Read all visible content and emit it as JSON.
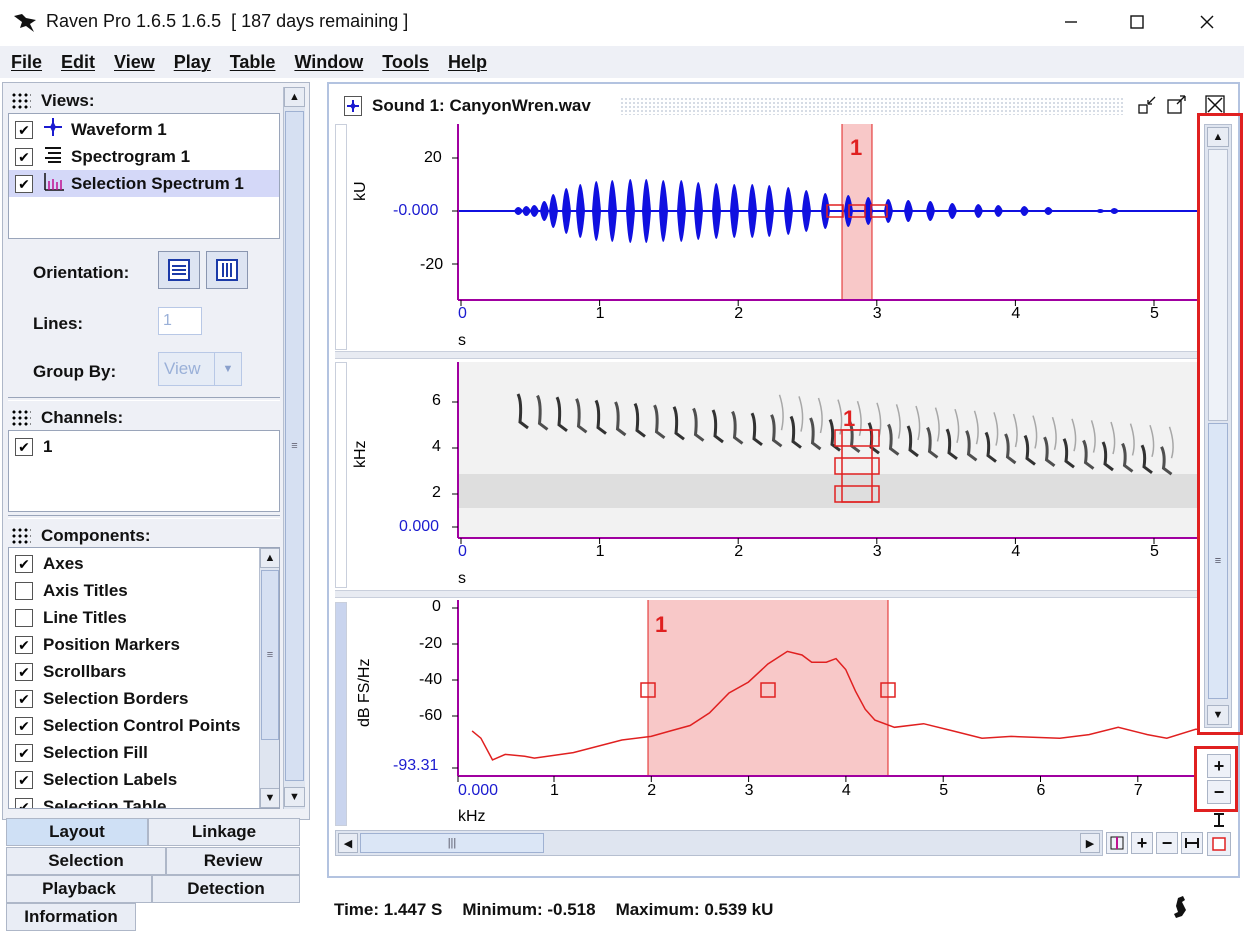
{
  "app": {
    "title": "Raven Pro 1.6.5 1.6.5  [ 187 days remaining ]"
  },
  "menu": [
    "File",
    "Edit",
    "View",
    "Play",
    "Table",
    "Window",
    "Tools",
    "Help"
  ],
  "views": {
    "heading": "Views:",
    "items": [
      {
        "label": "Waveform 1",
        "checked": true,
        "icon": "waveform-icon"
      },
      {
        "label": "Spectrogram 1",
        "checked": true,
        "icon": "spectrogram-icon"
      },
      {
        "label": "Selection Spectrum 1",
        "checked": true,
        "icon": "selection-spectrum-icon",
        "selected": true
      }
    ]
  },
  "layout_controls": {
    "orientation_label": "Orientation:",
    "lines_label": "Lines:",
    "lines_value": "1",
    "group_by_label": "Group By:",
    "group_by_value": "View"
  },
  "channels": {
    "heading": "Channels:",
    "items": [
      {
        "label": "1",
        "checked": true
      }
    ]
  },
  "components": {
    "heading": "Components:",
    "items": [
      {
        "label": "Axes",
        "checked": true
      },
      {
        "label": "Axis Titles",
        "checked": false
      },
      {
        "label": "Line Titles",
        "checked": false
      },
      {
        "label": "Position Markers",
        "checked": true
      },
      {
        "label": "Scrollbars",
        "checked": true
      },
      {
        "label": "Selection Borders",
        "checked": true
      },
      {
        "label": "Selection Control Points",
        "checked": true
      },
      {
        "label": "Selection Fill",
        "checked": true
      },
      {
        "label": "Selection Labels",
        "checked": true
      },
      {
        "label": "Selection Table",
        "checked": true
      }
    ]
  },
  "tabs": {
    "layout": "Layout",
    "linkage": "Linkage",
    "selection": "Selection",
    "review": "Review",
    "playback": "Playback",
    "detection": "Detection",
    "information": "Information"
  },
  "document": {
    "title": "Sound 1: CanyonWren.wav"
  },
  "waveform": {
    "ylabel": "kU",
    "yticks": [
      "20",
      "-0.000",
      "-20"
    ],
    "xticks": [
      "0",
      "1",
      "2",
      "3",
      "4",
      "5"
    ],
    "xunit": "s",
    "selection_label": "1"
  },
  "spectrogram": {
    "ylabel": "kHz",
    "yticks": [
      "6",
      "4",
      "2",
      "0.000"
    ],
    "xticks": [
      "0",
      "1",
      "2",
      "3",
      "4",
      "5"
    ],
    "xunit": "s",
    "selection_label": "1"
  },
  "spectrum": {
    "ylabel": "dB FS/Hz",
    "yticks": [
      "0",
      "-20",
      "-40",
      "-60",
      "-93.31"
    ],
    "xticks": [
      "0.000",
      "1",
      "2",
      "3",
      "4",
      "5",
      "6",
      "7"
    ],
    "xunit": "kHz",
    "selection_label": "1"
  },
  "status": {
    "time": "Time: 1.447 S",
    "minimum": "Minimum:  -0.518",
    "maximum": "Maximum:  0.539 kU"
  },
  "colors": {
    "waveform": "#1010e0",
    "selection": "#e02020",
    "selection_fill": "#f8c8c8",
    "axis_accent": "#a000a0"
  }
}
